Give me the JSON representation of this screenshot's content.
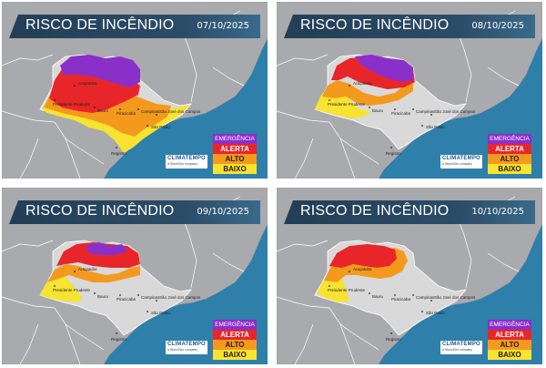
{
  "panels": [
    {
      "title": "RISCO DE INCÊNDIO",
      "date": "07/10/2025",
      "fire_risk_extent": {
        "emergencia": "large north",
        "alerta": "large",
        "alto": "wide",
        "baixo": "coastal strip"
      }
    },
    {
      "title": "RISCO DE INCÊNDIO",
      "date": "08/10/2025",
      "fire_risk_extent": {
        "emergencia": "northeast",
        "alerta": "north",
        "alto": "central",
        "baixo": "west"
      }
    },
    {
      "title": "RISCO DE INCÊNDIO",
      "date": "09/10/2025",
      "fire_risk_extent": {
        "emergencia": "small north",
        "alerta": "north",
        "alto": "central",
        "baixo": "west"
      }
    },
    {
      "title": "RISCO DE INCÊNDIO",
      "date": "10/10/2025",
      "fire_risk_extent": {
        "emergencia": "none",
        "alerta": "north",
        "alto": "central",
        "baixo": "southwest"
      }
    }
  ],
  "legend": [
    {
      "key": "emergencia",
      "label": "EMERGÊNCIA",
      "color": "#8b2fc9"
    },
    {
      "key": "alerta",
      "label": "ALERTA",
      "color": "#e8262a"
    },
    {
      "key": "alto",
      "label": "ALTO",
      "color": "#f39a1e"
    },
    {
      "key": "baixo",
      "label": "BAIXO",
      "color": "#f7e330"
    }
  ],
  "logo": {
    "name": "CLIMATEMPO",
    "tagline": "a StormGeo company"
  },
  "cities": [
    {
      "key": "aracatuba",
      "label": "Araçatuba"
    },
    {
      "key": "presidente_prudente",
      "label": "Presidente Prudente"
    },
    {
      "key": "bauru",
      "label": "Bauru"
    },
    {
      "key": "sao_jose_dos_campos",
      "label": "São José dos Campos"
    },
    {
      "key": "campinas",
      "label": "Campinas"
    },
    {
      "key": "piracicaba",
      "label": "Piracicaba"
    },
    {
      "key": "sao_paulo",
      "label": "São Paulo"
    },
    {
      "key": "registro",
      "label": "Registro"
    }
  ],
  "colors": {
    "ocean": "#2f7fab",
    "land": "#a9aaad",
    "state_fill_neutral": "#d9d9d9",
    "borders": "#ffffff"
  }
}
